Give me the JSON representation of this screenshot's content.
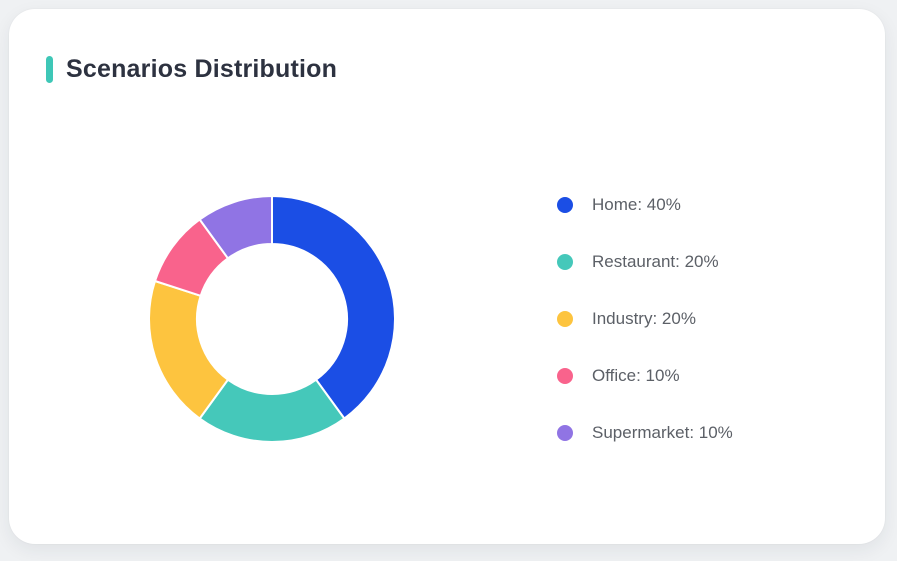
{
  "page": {
    "background_color": "#EFF1F3",
    "card_color": "#FFFFFF"
  },
  "card": {
    "title": "Scenarios Distribution",
    "accent_color": "#3EC7B7",
    "title_color": "#2D3240"
  },
  "legend_text_color": "#5C6067",
  "chart_data": {
    "type": "pie",
    "title": "Scenarios Distribution",
    "donut": true,
    "start_angle_deg": 0,
    "direction": "clockwise",
    "outer_radius_px": 123,
    "inner_radius_px": 75,
    "segment_gap_color": "#FFFFFF",
    "legend_position": "right",
    "categories": [
      "Home",
      "Restaurant",
      "Industry",
      "Office",
      "Supermarket"
    ],
    "values": [
      40,
      20,
      20,
      10,
      10
    ],
    "unit": "%",
    "colors": [
      "#1B4EE5",
      "#45C8BA",
      "#FDC43F",
      "#F9638C",
      "#9074E4"
    ],
    "legend_labels": [
      "Home: 40%",
      "Restaurant: 20%",
      "Industry: 20%",
      "Office: 10%",
      "Supermarket: 10%"
    ]
  }
}
